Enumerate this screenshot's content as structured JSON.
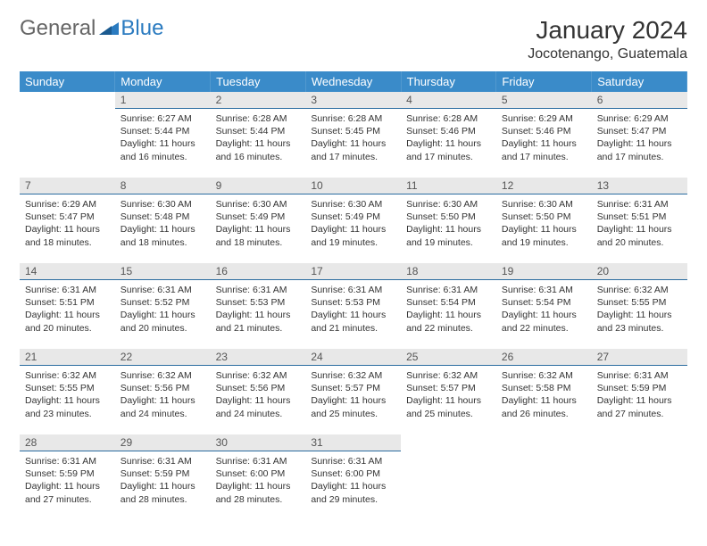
{
  "logo": {
    "text_general": "General",
    "text_blue": "Blue"
  },
  "header": {
    "month_title": "January 2024",
    "location": "Jocotenango, Guatemala"
  },
  "colors": {
    "header_bg": "#3a8bc9",
    "header_text": "#ffffff",
    "daynum_bg": "#e8e8e8",
    "daynum_border": "#2b6ca0",
    "body_text": "#333333"
  },
  "weekdays": [
    "Sunday",
    "Monday",
    "Tuesday",
    "Wednesday",
    "Thursday",
    "Friday",
    "Saturday"
  ],
  "days": [
    {
      "n": "1",
      "sr": "6:27 AM",
      "ss": "5:44 PM",
      "dl": "11 hours and 16 minutes."
    },
    {
      "n": "2",
      "sr": "6:28 AM",
      "ss": "5:44 PM",
      "dl": "11 hours and 16 minutes."
    },
    {
      "n": "3",
      "sr": "6:28 AM",
      "ss": "5:45 PM",
      "dl": "11 hours and 17 minutes."
    },
    {
      "n": "4",
      "sr": "6:28 AM",
      "ss": "5:46 PM",
      "dl": "11 hours and 17 minutes."
    },
    {
      "n": "5",
      "sr": "6:29 AM",
      "ss": "5:46 PM",
      "dl": "11 hours and 17 minutes."
    },
    {
      "n": "6",
      "sr": "6:29 AM",
      "ss": "5:47 PM",
      "dl": "11 hours and 17 minutes."
    },
    {
      "n": "7",
      "sr": "6:29 AM",
      "ss": "5:47 PM",
      "dl": "11 hours and 18 minutes."
    },
    {
      "n": "8",
      "sr": "6:30 AM",
      "ss": "5:48 PM",
      "dl": "11 hours and 18 minutes."
    },
    {
      "n": "9",
      "sr": "6:30 AM",
      "ss": "5:49 PM",
      "dl": "11 hours and 18 minutes."
    },
    {
      "n": "10",
      "sr": "6:30 AM",
      "ss": "5:49 PM",
      "dl": "11 hours and 19 minutes."
    },
    {
      "n": "11",
      "sr": "6:30 AM",
      "ss": "5:50 PM",
      "dl": "11 hours and 19 minutes."
    },
    {
      "n": "12",
      "sr": "6:30 AM",
      "ss": "5:50 PM",
      "dl": "11 hours and 19 minutes."
    },
    {
      "n": "13",
      "sr": "6:31 AM",
      "ss": "5:51 PM",
      "dl": "11 hours and 20 minutes."
    },
    {
      "n": "14",
      "sr": "6:31 AM",
      "ss": "5:51 PM",
      "dl": "11 hours and 20 minutes."
    },
    {
      "n": "15",
      "sr": "6:31 AM",
      "ss": "5:52 PM",
      "dl": "11 hours and 20 minutes."
    },
    {
      "n": "16",
      "sr": "6:31 AM",
      "ss": "5:53 PM",
      "dl": "11 hours and 21 minutes."
    },
    {
      "n": "17",
      "sr": "6:31 AM",
      "ss": "5:53 PM",
      "dl": "11 hours and 21 minutes."
    },
    {
      "n": "18",
      "sr": "6:31 AM",
      "ss": "5:54 PM",
      "dl": "11 hours and 22 minutes."
    },
    {
      "n": "19",
      "sr": "6:31 AM",
      "ss": "5:54 PM",
      "dl": "11 hours and 22 minutes."
    },
    {
      "n": "20",
      "sr": "6:32 AM",
      "ss": "5:55 PM",
      "dl": "11 hours and 23 minutes."
    },
    {
      "n": "21",
      "sr": "6:32 AM",
      "ss": "5:55 PM",
      "dl": "11 hours and 23 minutes."
    },
    {
      "n": "22",
      "sr": "6:32 AM",
      "ss": "5:56 PM",
      "dl": "11 hours and 24 minutes."
    },
    {
      "n": "23",
      "sr": "6:32 AM",
      "ss": "5:56 PM",
      "dl": "11 hours and 24 minutes."
    },
    {
      "n": "24",
      "sr": "6:32 AM",
      "ss": "5:57 PM",
      "dl": "11 hours and 25 minutes."
    },
    {
      "n": "25",
      "sr": "6:32 AM",
      "ss": "5:57 PM",
      "dl": "11 hours and 25 minutes."
    },
    {
      "n": "26",
      "sr": "6:32 AM",
      "ss": "5:58 PM",
      "dl": "11 hours and 26 minutes."
    },
    {
      "n": "27",
      "sr": "6:31 AM",
      "ss": "5:59 PM",
      "dl": "11 hours and 27 minutes."
    },
    {
      "n": "28",
      "sr": "6:31 AM",
      "ss": "5:59 PM",
      "dl": "11 hours and 27 minutes."
    },
    {
      "n": "29",
      "sr": "6:31 AM",
      "ss": "5:59 PM",
      "dl": "11 hours and 28 minutes."
    },
    {
      "n": "30",
      "sr": "6:31 AM",
      "ss": "6:00 PM",
      "dl": "11 hours and 28 minutes."
    },
    {
      "n": "31",
      "sr": "6:31 AM",
      "ss": "6:00 PM",
      "dl": "11 hours and 29 minutes."
    }
  ],
  "labels": {
    "sunrise": "Sunrise:",
    "sunset": "Sunset:",
    "daylight": "Daylight:"
  },
  "layout": {
    "first_weekday_offset": 1,
    "total_days": 31
  }
}
